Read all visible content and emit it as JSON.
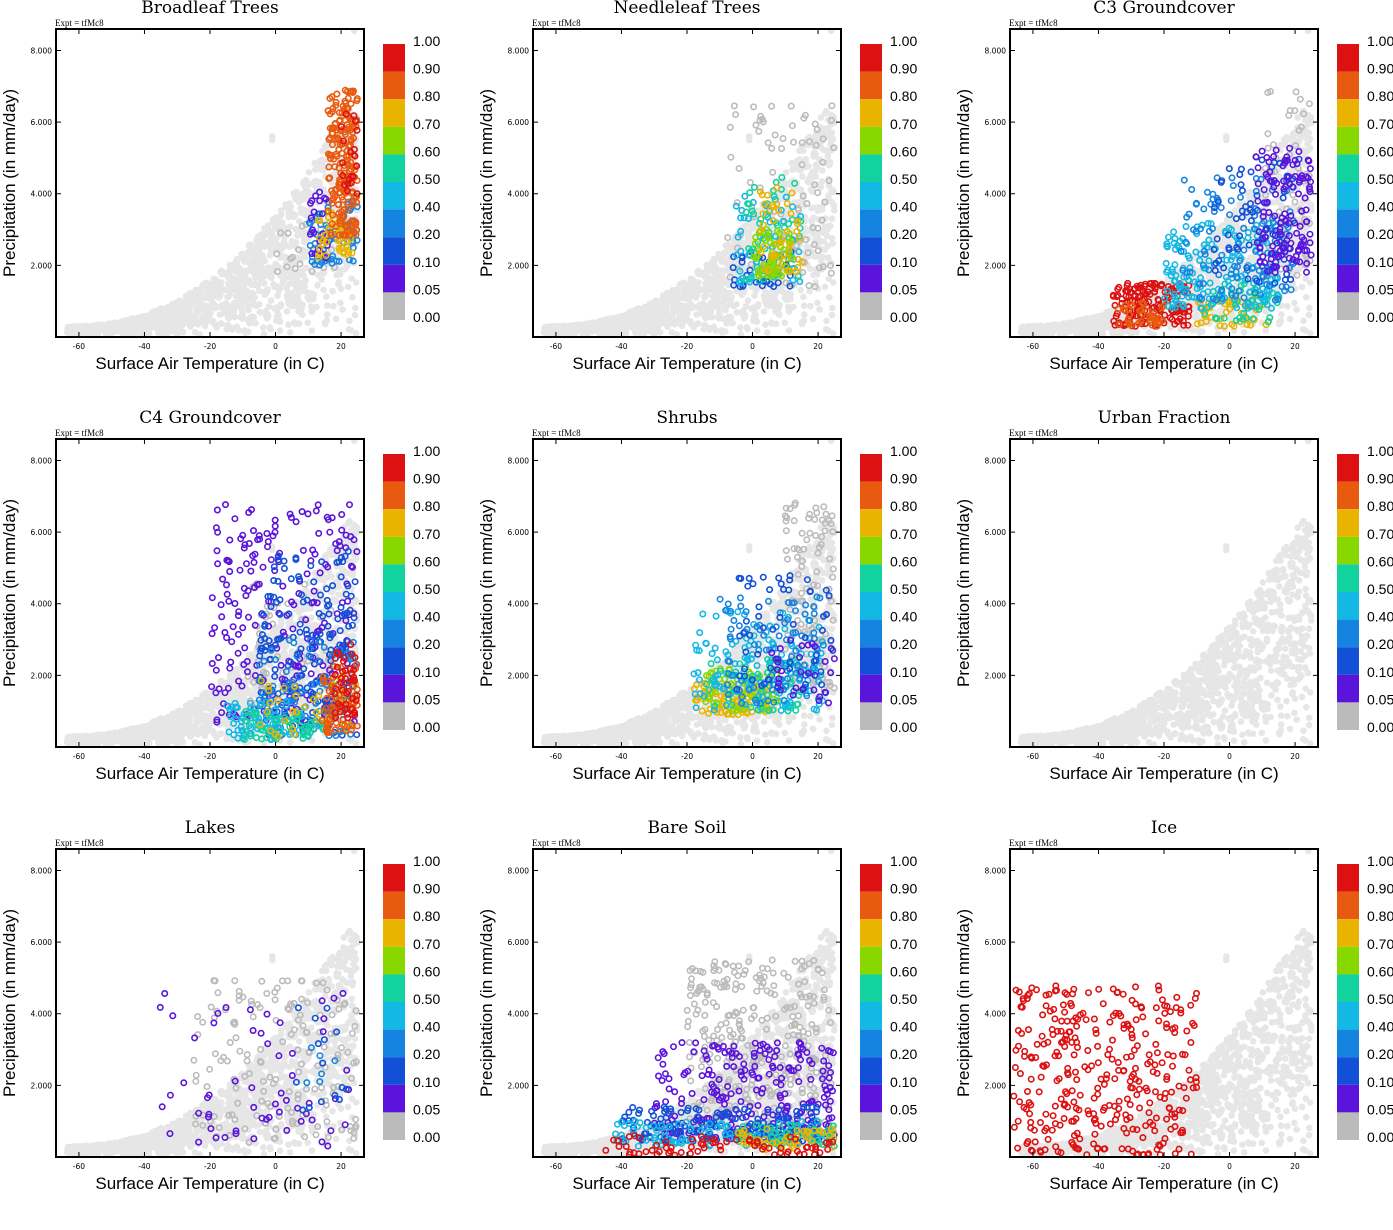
{
  "colorbar": {
    "levels": [
      "1.00",
      "0.90",
      "0.80",
      "0.70",
      "0.60",
      "0.50",
      "0.40",
      "0.20",
      "0.10",
      "0.05",
      "0.00"
    ],
    "colors": [
      "#dd1111",
      "#e85a10",
      "#e8b400",
      "#88d800",
      "#12d2a0",
      "#14b8e4",
      "#1584e0",
      "#1250d8",
      "#5a14dc",
      "#bbbbbb"
    ]
  },
  "background_color": "#e6e6e6",
  "chart_data": [
    {
      "type": "scatter",
      "title": "Broadleaf Trees",
      "expt": "Expt = tfMc8",
      "xlabel": "Surface Air Temperature (in C)",
      "ylabel": "Precipitation (in mm/day)",
      "xlim": [
        -67,
        27
      ],
      "ylim": [
        0,
        8.6
      ],
      "xticks": [
        "-60",
        "-40",
        "-20",
        "0",
        "20"
      ],
      "yticks": [
        "2.000",
        "4.000",
        "6.000",
        "8.000"
      ],
      "clusters": [
        {
          "color": "#bbbbbb",
          "x": [
            0,
            20
          ],
          "y": [
            1.8,
            3.2
          ],
          "n": 25
        },
        {
          "color": "#1584e0",
          "x": [
            10,
            25
          ],
          "y": [
            2.0,
            3.8
          ],
          "n": 60
        },
        {
          "color": "#5a14dc",
          "x": [
            10,
            16
          ],
          "y": [
            2.2,
            4.3
          ],
          "n": 22
        },
        {
          "color": "#e8b400",
          "x": [
            13,
            25
          ],
          "y": [
            2.2,
            3.6
          ],
          "n": 45
        },
        {
          "color": "#e85a10",
          "x": [
            16,
            25
          ],
          "y": [
            2.8,
            6.9
          ],
          "n": 200
        },
        {
          "color": "#dd1111",
          "x": [
            20,
            25
          ],
          "y": [
            4.0,
            6.3
          ],
          "n": 20
        }
      ]
    },
    {
      "type": "scatter",
      "title": "Needleleaf Trees",
      "expt": "Expt = tfMc8",
      "xlabel": "Surface Air Temperature (in C)",
      "ylabel": "Precipitation (in mm/day)",
      "xlim": [
        -67,
        27
      ],
      "ylim": [
        0,
        8.6
      ],
      "xticks": [
        "-60",
        "-40",
        "-20",
        "0",
        "20"
      ],
      "yticks": [
        "2.000",
        "4.000",
        "6.000",
        "8.000"
      ],
      "clusters": [
        {
          "color": "#bbbbbb",
          "x": [
            -8,
            25
          ],
          "y": [
            1.4,
            6.5
          ],
          "n": 90
        },
        {
          "color": "#1250d8",
          "x": [
            -6,
            12
          ],
          "y": [
            1.4,
            2.4
          ],
          "n": 35
        },
        {
          "color": "#14b8e4",
          "x": [
            -5,
            15
          ],
          "y": [
            1.5,
            4.0
          ],
          "n": 60
        },
        {
          "color": "#12d2a0",
          "x": [
            -3,
            15
          ],
          "y": [
            1.6,
            4.5
          ],
          "n": 50
        },
        {
          "color": "#88d800",
          "x": [
            0,
            12
          ],
          "y": [
            1.7,
            3.0
          ],
          "n": 60
        },
        {
          "color": "#e8b400",
          "x": [
            2,
            16
          ],
          "y": [
            1.8,
            4.2
          ],
          "n": 45
        }
      ]
    },
    {
      "type": "scatter",
      "title": "C3 Groundcover",
      "expt": "Expt = tfMc8",
      "xlabel": "Surface Air Temperature (in C)",
      "ylabel": "Precipitation (in mm/day)",
      "xlim": [
        -67,
        27
      ],
      "ylim": [
        0,
        8.6
      ],
      "xticks": [
        "-60",
        "-40",
        "-20",
        "0",
        "20"
      ],
      "yticks": [
        "2.000",
        "4.000",
        "6.000",
        "8.000"
      ],
      "clusters": [
        {
          "color": "#bbbbbb",
          "x": [
            10,
            25
          ],
          "y": [
            1.5,
            6.9
          ],
          "n": 60
        },
        {
          "color": "#dd1111",
          "x": [
            -36,
            -12
          ],
          "y": [
            0.3,
            1.5
          ],
          "n": 160
        },
        {
          "color": "#e85a10",
          "x": [
            -34,
            -20
          ],
          "y": [
            0.3,
            1.0
          ],
          "n": 40
        },
        {
          "color": "#e8b400",
          "x": [
            -10,
            12
          ],
          "y": [
            0.3,
            1.2
          ],
          "n": 50
        },
        {
          "color": "#12d2a0",
          "x": [
            -8,
            15
          ],
          "y": [
            0.4,
            1.5
          ],
          "n": 40
        },
        {
          "color": "#14b8e4",
          "x": [
            -20,
            15
          ],
          "y": [
            0.8,
            3.2
          ],
          "n": 170
        },
        {
          "color": "#1584e0",
          "x": [
            -15,
            20
          ],
          "y": [
            1.0,
            4.5
          ],
          "n": 120
        },
        {
          "color": "#1250d8",
          "x": [
            -5,
            22
          ],
          "y": [
            1.5,
            5.0
          ],
          "n": 70
        },
        {
          "color": "#5a14dc",
          "x": [
            8,
            25
          ],
          "y": [
            1.8,
            5.3
          ],
          "n": 130
        }
      ]
    },
    {
      "type": "scatter",
      "title": "C4 Groundcover",
      "expt": "Expt = tfMc8",
      "xlabel": "Surface Air Temperature (in C)",
      "ylabel": "Precipitation (in mm/day)",
      "xlim": [
        -67,
        27
      ],
      "ylim": [
        0,
        8.6
      ],
      "xticks": [
        "-60",
        "-40",
        "-20",
        "0",
        "20"
      ],
      "yticks": [
        "2.000",
        "4.000",
        "6.000",
        "8.000"
      ],
      "clusters": [
        {
          "color": "#bbbbbb",
          "x": [
            -10,
            20
          ],
          "y": [
            1.2,
            4.6
          ],
          "n": 60
        },
        {
          "color": "#5a14dc",
          "x": [
            -20,
            25
          ],
          "y": [
            0.6,
            6.8
          ],
          "n": 250
        },
        {
          "color": "#1250d8",
          "x": [
            -5,
            25
          ],
          "y": [
            0.3,
            5.5
          ],
          "n": 180
        },
        {
          "color": "#1584e0",
          "x": [
            -5,
            25
          ],
          "y": [
            0.3,
            3.0
          ],
          "n": 90
        },
        {
          "color": "#14b8e4",
          "x": [
            -15,
            10
          ],
          "y": [
            0.2,
            1.3
          ],
          "n": 80
        },
        {
          "color": "#12d2a0",
          "x": [
            -10,
            15
          ],
          "y": [
            0.2,
            1.0
          ],
          "n": 50
        },
        {
          "color": "#e8b400",
          "x": [
            -5,
            25
          ],
          "y": [
            0.2,
            2.0
          ],
          "n": 40
        },
        {
          "color": "#e85a10",
          "x": [
            14,
            25
          ],
          "y": [
            0.4,
            2.3
          ],
          "n": 70
        },
        {
          "color": "#dd1111",
          "x": [
            18,
            25
          ],
          "y": [
            0.8,
            3.0
          ],
          "n": 45
        }
      ]
    },
    {
      "type": "scatter",
      "title": "Shrubs",
      "expt": "Expt = tfMc8",
      "xlabel": "Surface Air Temperature (in C)",
      "ylabel": "Precipitation (in mm/day)",
      "xlim": [
        -67,
        27
      ],
      "ylim": [
        0,
        8.6
      ],
      "xticks": [
        "-60",
        "-40",
        "-20",
        "0",
        "20"
      ],
      "yticks": [
        "2.000",
        "4.000",
        "6.000",
        "8.000"
      ],
      "clusters": [
        {
          "color": "#bbbbbb",
          "x": [
            10,
            25
          ],
          "y": [
            1.5,
            6.9
          ],
          "n": 110
        },
        {
          "color": "#e8b400",
          "x": [
            -18,
            5
          ],
          "y": [
            0.9,
            1.8
          ],
          "n": 90
        },
        {
          "color": "#88d800",
          "x": [
            -15,
            10
          ],
          "y": [
            1.0,
            2.2
          ],
          "n": 60
        },
        {
          "color": "#12d2a0",
          "x": [
            -15,
            15
          ],
          "y": [
            1.0,
            2.5
          ],
          "n": 60
        },
        {
          "color": "#14b8e4",
          "x": [
            -18,
            22
          ],
          "y": [
            1.0,
            3.8
          ],
          "n": 130
        },
        {
          "color": "#1584e0",
          "x": [
            -10,
            22
          ],
          "y": [
            1.2,
            4.2
          ],
          "n": 90
        },
        {
          "color": "#1250d8",
          "x": [
            -5,
            25
          ],
          "y": [
            1.5,
            4.9
          ],
          "n": 60
        },
        {
          "color": "#5a14dc",
          "x": [
            5,
            25
          ],
          "y": [
            1.2,
            3.0
          ],
          "n": 30
        }
      ]
    },
    {
      "type": "scatter",
      "title": "Urban Fraction",
      "expt": "Expt = tfMc8",
      "xlabel": "Surface Air Temperature (in C)",
      "ylabel": "Precipitation (in mm/day)",
      "xlim": [
        -67,
        27
      ],
      "ylim": [
        0,
        8.6
      ],
      "xticks": [
        "-60",
        "-40",
        "-20",
        "0",
        "20"
      ],
      "yticks": [
        "2.000",
        "4.000",
        "6.000",
        "8.000"
      ],
      "clusters": []
    },
    {
      "type": "scatter",
      "title": "Lakes",
      "expt": "Expt = tfMc8",
      "xlabel": "Surface Air Temperature (in C)",
      "ylabel": "Precipitation (in mm/day)",
      "xlim": [
        -67,
        27
      ],
      "ylim": [
        0,
        8.6
      ],
      "xticks": [
        "-60",
        "-40",
        "-20",
        "0",
        "20"
      ],
      "yticks": [
        "2.000",
        "4.000",
        "6.000",
        "8.000"
      ],
      "clusters": [
        {
          "color": "#bbbbbb",
          "x": [
            -25,
            25
          ],
          "y": [
            0.4,
            5.0
          ],
          "n": 160
        },
        {
          "color": "#5a14dc",
          "x": [
            -36,
            24
          ],
          "y": [
            0.3,
            4.9
          ],
          "n": 60
        },
        {
          "color": "#1250d8",
          "x": [
            5,
            22
          ],
          "y": [
            1.3,
            4.5
          ],
          "n": 15
        },
        {
          "color": "#1584e0",
          "x": [
            8,
            20
          ],
          "y": [
            1.8,
            3.2
          ],
          "n": 6
        }
      ]
    },
    {
      "type": "scatter",
      "title": "Bare Soil",
      "expt": "Expt = tfMc8",
      "xlabel": "Surface Air Temperature (in C)",
      "ylabel": "Precipitation (in mm/day)",
      "xlim": [
        -67,
        27
      ],
      "ylim": [
        0,
        8.6
      ],
      "xticks": [
        "-60",
        "-40",
        "-20",
        "0",
        "20"
      ],
      "yticks": [
        "2.000",
        "4.000",
        "6.000",
        "8.000"
      ],
      "clusters": [
        {
          "color": "#bbbbbb",
          "x": [
            -20,
            25
          ],
          "y": [
            0.8,
            5.5
          ],
          "n": 320
        },
        {
          "color": "#5a14dc",
          "x": [
            -30,
            25
          ],
          "y": [
            0.5,
            3.2
          ],
          "n": 240
        },
        {
          "color": "#1250d8",
          "x": [
            -40,
            20
          ],
          "y": [
            0.4,
            1.4
          ],
          "n": 170
        },
        {
          "color": "#14b8e4",
          "x": [
            -42,
            25
          ],
          "y": [
            0.3,
            1.0
          ],
          "n": 90
        },
        {
          "color": "#12d2a0",
          "x": [
            -5,
            25
          ],
          "y": [
            0.3,
            0.9
          ],
          "n": 50
        },
        {
          "color": "#e8b400",
          "x": [
            -5,
            25
          ],
          "y": [
            0.2,
            0.8
          ],
          "n": 45
        },
        {
          "color": "#dd1111",
          "x": [
            -45,
            25
          ],
          "y": [
            0.05,
            0.6
          ],
          "n": 70
        }
      ]
    },
    {
      "type": "scatter",
      "title": "Ice",
      "expt": "Expt = tfMc8",
      "xlabel": "Surface Air Temperature (in C)",
      "ylabel": "Precipitation (in mm/day)",
      "xlim": [
        -67,
        27
      ],
      "ylim": [
        0,
        8.6
      ],
      "xticks": [
        "-60",
        "-40",
        "-20",
        "0",
        "20"
      ],
      "yticks": [
        "2.000",
        "4.000",
        "6.000",
        "8.000"
      ],
      "clusters": [
        {
          "color": "#dd1111",
          "x": [
            -66,
            -10
          ],
          "y": [
            0.05,
            4.8
          ],
          "n": 340
        }
      ]
    }
  ]
}
